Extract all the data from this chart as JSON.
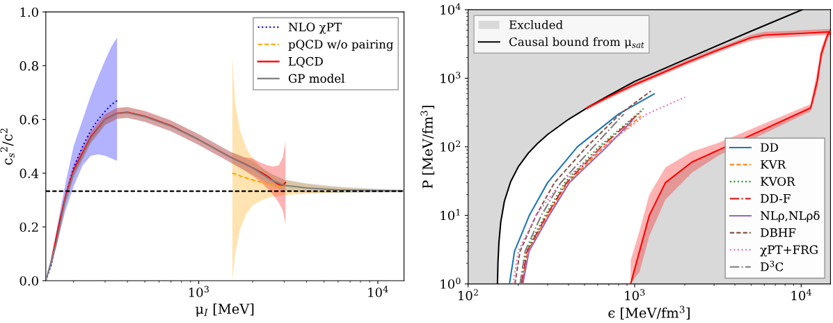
{
  "chart_data": [
    {
      "type": "line",
      "xlabel": "μ$_{I}$ [MeV]",
      "ylabel": "c$_{s}$$^{2}$/c$^{2}$",
      "log": "x",
      "xlim": [
        140,
        14000
      ],
      "ylim": [
        0,
        1
      ],
      "xticks": [
        {
          "value": 1000,
          "label": "10$^{3}$"
        },
        {
          "value": 10000,
          "label": "10$^{4}$"
        }
      ],
      "yticks": [
        {
          "value": 0,
          "label": "0.0"
        },
        {
          "value": 0.2,
          "label": "0.2"
        },
        {
          "value": 0.4,
          "label": "0.4"
        },
        {
          "value": 0.6,
          "label": "0.6"
        },
        {
          "value": 0.8,
          "label": "0.8"
        },
        {
          "value": 1,
          "label": "1.0"
        }
      ],
      "legend": [
        "top right"
      ],
      "ref_lines": [
        {
          "axis": "y",
          "value": 0.333,
          "color": "#000000",
          "line_style": "dashed"
        }
      ],
      "series": [
        {
          "name": "NLO χPT",
          "color": "#0000ff",
          "line_style": "dotted",
          "x": [
            140,
            150,
            165,
            180,
            200,
            225,
            250,
            275,
            300,
            325,
            350
          ],
          "values": [
            0,
            0.06,
            0.2,
            0.31,
            0.42,
            0.5,
            0.56,
            0.6,
            0.63,
            0.655,
            0.67
          ],
          "lower": [
            0,
            0.05,
            0.16,
            0.26,
            0.35,
            0.43,
            0.465,
            0.47,
            0.465,
            0.455,
            0.446
          ],
          "upper": [
            0,
            0.07,
            0.23,
            0.36,
            0.5,
            0.6,
            0.69,
            0.76,
            0.82,
            0.87,
            0.905
          ]
        },
        {
          "name": "pQCD w/o pairing",
          "color": "#ffa500",
          "line_style": "dashed",
          "x": [
            1540,
            1600,
            1700,
            1850,
            2000,
            2250,
            2500,
            2750,
            3000,
            4000,
            5000,
            7000,
            10000,
            14000
          ],
          "values": [
            0.4,
            0.397,
            0.39,
            0.382,
            0.375,
            0.365,
            0.357,
            0.352,
            0.35,
            null,
            null,
            null,
            null,
            null
          ],
          "lower": [
            0,
            0.1,
            0.19,
            0.25,
            0.28,
            0.3,
            0.31,
            0.315,
            0.318,
            0.323,
            0.326,
            0.329,
            0.331,
            0.332
          ],
          "upper": [
            0.83,
            0.66,
            0.56,
            0.49,
            0.455,
            0.42,
            0.4,
            0.385,
            0.375,
            0.36,
            0.352,
            0.344,
            0.339,
            0.337
          ]
        },
        {
          "name": "LQCD",
          "color": "#ff0000",
          "line_style": "solid",
          "x": [
            150,
            165,
            180,
            200,
            250,
            300,
            350,
            400,
            500,
            700,
            1000,
            1500,
            1800,
            2000,
            2200,
            2400,
            2600,
            2800,
            2950,
            3050
          ],
          "values": [
            0.07,
            0.2,
            0.31,
            0.41,
            0.535,
            0.6,
            0.623,
            0.627,
            0.612,
            0.577,
            0.525,
            0.46,
            0.435,
            0.42,
            0.405,
            0.39,
            0.372,
            0.358,
            0.355,
            0.365
          ],
          "lower": [
            0.05,
            0.18,
            0.29,
            0.39,
            0.515,
            0.58,
            0.603,
            0.607,
            0.592,
            0.557,
            0.505,
            0.44,
            0.41,
            0.39,
            0.37,
            0.345,
            0.32,
            0.29,
            0.26,
            0.21
          ],
          "upper": [
            0.09,
            0.22,
            0.33,
            0.43,
            0.555,
            0.62,
            0.643,
            0.647,
            0.632,
            0.597,
            0.545,
            0.48,
            0.46,
            0.455,
            0.44,
            0.43,
            0.425,
            0.43,
            0.46,
            0.52
          ]
        },
        {
          "name": "GP model",
          "color": "#808080",
          "line_style": "solid",
          "x": [
            140,
            160,
            180,
            200,
            250,
            300,
            350,
            400,
            500,
            700,
            1000,
            1500,
            2000,
            2500,
            3000,
            4000,
            6000,
            10000,
            14000
          ],
          "values": [
            0,
            0.14,
            0.3,
            0.4,
            0.53,
            0.598,
            0.622,
            0.625,
            0.61,
            0.575,
            0.525,
            0.46,
            0.42,
            0.377,
            0.355,
            0.345,
            0.338,
            0.335,
            0.334
          ],
          "lower": [
            0,
            0.12,
            0.28,
            0.38,
            0.51,
            0.578,
            0.602,
            0.605,
            0.59,
            0.555,
            0.505,
            0.44,
            0.395,
            0.355,
            0.335,
            0.328,
            0.327,
            0.328,
            0.329
          ],
          "upper": [
            0,
            0.16,
            0.32,
            0.42,
            0.55,
            0.618,
            0.642,
            0.645,
            0.63,
            0.595,
            0.545,
            0.48,
            0.445,
            0.4,
            0.377,
            0.362,
            0.35,
            0.342,
            0.339
          ]
        }
      ]
    },
    {
      "type": "line",
      "xlabel": "ϵ [MeV/fm$^{3}$]",
      "ylabel": "P [MeV/fm$^{3}$]",
      "log": "xy",
      "xlim": [
        100,
        15000
      ],
      "ylim": [
        1,
        10000
      ],
      "xticks": [
        {
          "value": 100,
          "label": "10$^{2}$"
        },
        {
          "value": 1000,
          "label": "10$^{3}$"
        },
        {
          "value": 10000,
          "label": "10$^{4}$"
        }
      ],
      "yticks": [
        {
          "value": 1,
          "label": "10$^{0}$"
        },
        {
          "value": 10,
          "label": "10$^{1}$"
        },
        {
          "value": 100,
          "label": "10$^{2}$"
        },
        {
          "value": 1000,
          "label": "10$^{3}$"
        },
        {
          "value": 10000,
          "label": "10$^{4}$"
        }
      ],
      "legend": [
        "top left",
        "lower right"
      ],
      "bands": [
        {
          "axis": "x",
          "from": 100,
          "to": 15000,
          "label": "Excluded",
          "color": "#d9d9d9"
        }
      ],
      "series": [
        {
          "name": "Causal bound from μ$_{sat}$",
          "color": "#000000",
          "line_style": "solid",
          "x": [
            150,
            151,
            153,
            157,
            165,
            180,
            200,
            230,
            260,
            300,
            400,
            515,
            700,
            1000,
            2000,
            5000,
            10150
          ],
          "values": [
            1,
            2,
            4,
            8,
            16,
            31,
            51,
            81,
            111,
            151,
            251,
            366,
            560,
            900,
            1870,
            4870,
            10000
          ]
        },
        {
          "color": "#ff0000",
          "line_style": "solid",
          "x": [
            515,
            700,
            1000,
            2000,
            3000,
            4000,
            5000,
            6000,
            8000,
            10000,
            15000
          ],
          "values": [
            366,
            540,
            810,
            1650,
            2450,
            3200,
            3900,
            4250,
            4400,
            4500,
            4750
          ],
          "lower": [
            345,
            500,
            750,
            1520,
            2250,
            2950,
            3500,
            3800,
            3950,
            4050,
            4300
          ],
          "upper": [
            390,
            580,
            870,
            1780,
            2650,
            3450,
            4300,
            4750,
            4900,
            5000,
            5250
          ]
        },
        {
          "color": "#ff0000",
          "line_style": "solid",
          "x": [
            946,
            1070,
            1225,
            1530,
            2210,
            3200,
            11400,
            12500,
            13200,
            14400,
            15000
          ],
          "values": [
            1,
            3,
            10,
            30,
            60,
            90,
            370,
            930,
            2270,
            4300,
            4750
          ],
          "lower": [
            1,
            1.5,
            5,
            17,
            42,
            75,
            330,
            700,
            1800,
            3800,
            4300
          ],
          "upper": [
            2.2,
            6,
            20,
            50,
            85,
            115,
            420,
            1300,
            2800,
            4800,
            5200
          ]
        },
        {
          "name": "DD",
          "color": "#1f77b4",
          "line_style": "solid",
          "x": [
            177,
            190,
            233,
            300,
            453,
            800,
            1310
          ],
          "values": [
            1,
            3,
            10,
            30,
            100,
            300,
            590
          ]
        },
        {
          "name": "KVR",
          "color": "#ff7f0e",
          "line_style": "dashed",
          "x": [
            210,
            228,
            300,
            395,
            655,
            1090
          ],
          "values": [
            1,
            3,
            10,
            30,
            100,
            280
          ]
        },
        {
          "name": "KVOR",
          "color": "#2ca02c",
          "line_style": "dotted",
          "x": [
            205,
            222,
            290,
            380,
            610,
            1130
          ],
          "values": [
            1,
            3,
            10,
            30,
            100,
            360
          ]
        },
        {
          "name": "DD-F",
          "color": "#d62728",
          "line_style": "dashdot",
          "x": [
            209,
            226,
            296,
            390,
            630,
            1100
          ],
          "values": [
            1,
            3,
            10,
            30,
            100,
            330
          ]
        },
        {
          "name": "NLρ,NLρδ",
          "color": "#9467bd",
          "line_style": "solid",
          "x": [
            213,
            232,
            307,
            405,
            680,
            965
          ],
          "values": [
            1,
            3,
            10,
            30,
            100,
            240
          ]
        },
        {
          "name": "DBHF",
          "color": "#8c564b",
          "line_style": "dashed",
          "x": [
            191,
            205,
            256,
            330,
            515,
            816,
            1250
          ],
          "values": [
            1,
            3,
            10,
            30,
            100,
            300,
            650
          ]
        },
        {
          "name": "χPT+FRG",
          "color": "#e377c2",
          "line_style": "dotted",
          "x": [
            186,
            200,
            256,
            360,
            655,
            1180,
            2010
          ],
          "values": [
            1,
            3,
            10,
            30,
            100,
            300,
            530
          ]
        },
        {
          "name": "D$^{3}$C",
          "color": "#7f7f7f",
          "line_style": "dashdot",
          "x": [
            205,
            220,
            275,
            360,
            565,
            860
          ],
          "values": [
            1,
            3,
            10,
            30,
            100,
            300
          ]
        }
      ]
    }
  ]
}
